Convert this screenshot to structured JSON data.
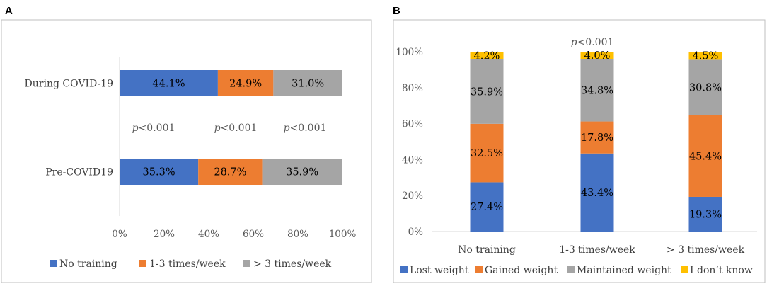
{
  "chart_data": [
    {
      "panel": "A",
      "type": "bar",
      "orientation": "horizontal",
      "stacked": true,
      "percent_stacked": true,
      "categories": [
        "During COVID-19",
        "Pre-COVID19"
      ],
      "series": [
        {
          "name": "No training",
          "values": [
            44.1,
            35.3
          ],
          "labels": [
            "44.1%",
            "35.3%"
          ]
        },
        {
          "name": "1-3 times/week",
          "values": [
            24.9,
            28.7
          ],
          "labels": [
            "24.9%",
            "28.7%"
          ]
        },
        {
          "name": "> 3 times/week",
          "values": [
            31.0,
            35.9
          ],
          "labels": [
            "31.0%",
            "35.9%"
          ]
        }
      ],
      "xticks": [
        "0%",
        "20%",
        "40%",
        "60%",
        "80%",
        "100%"
      ],
      "xlim": [
        0,
        100
      ],
      "annotations": [
        "p<0.001",
        "p<0.001",
        "p<0.001"
      ],
      "legend": "bottom"
    },
    {
      "panel": "B",
      "type": "bar",
      "orientation": "vertical",
      "stacked": true,
      "percent_stacked": true,
      "categories": [
        "No training",
        "1-3 times/week",
        "> 3 times/week"
      ],
      "series": [
        {
          "name": "Lost weight",
          "values": [
            27.4,
            43.4,
            19.3
          ],
          "labels": [
            "27.4%",
            "43.4%",
            "19.3%"
          ]
        },
        {
          "name": "Gained weight",
          "values": [
            32.5,
            17.8,
            45.4
          ],
          "labels": [
            "32.5%",
            "17.8%",
            "45.4%"
          ]
        },
        {
          "name": "Maintained weight",
          "values": [
            35.9,
            34.8,
            30.8
          ],
          "labels": [
            "35.9%",
            "34.8%",
            "30.8%"
          ]
        },
        {
          "name": "I don’t know",
          "values": [
            4.2,
            4.0,
            4.5
          ],
          "labels": [
            "4.2%",
            "4.0%",
            "4.5%"
          ]
        }
      ],
      "yticks": [
        "0%",
        "20%",
        "40%",
        "60%",
        "80%",
        "100%"
      ],
      "ylim": [
        0,
        100
      ],
      "annotation": "p<0.001",
      "legend": "bottom"
    }
  ],
  "colors": {
    "blue": "#4472c4",
    "orange": "#ed7d31",
    "gray": "#a5a5a5",
    "yellow": "#ffc000",
    "axis": "#d9d9d9"
  }
}
